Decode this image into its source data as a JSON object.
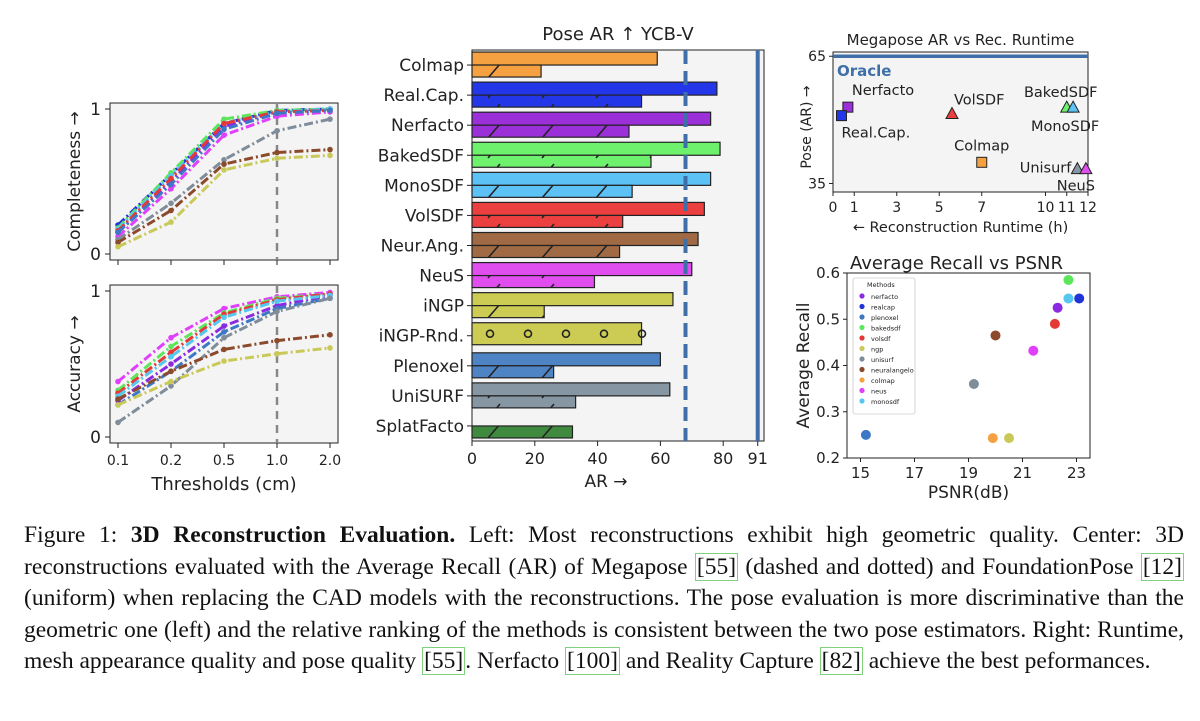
{
  "chart_data": [
    {
      "id": "completeness",
      "type": "line",
      "ylabel": "Completeness →",
      "xlabel": "",
      "xticks": [
        "0.1",
        "0.2",
        "0.5",
        "1.0",
        "2.0"
      ],
      "yticks": [
        "0",
        "1"
      ],
      "ylim": [
        0,
        1
      ],
      "vline_x": "1.0",
      "series": [
        {
          "name": "nerfacto",
          "color": "#8a2be2",
          "values": [
            0.15,
            0.5,
            0.88,
            0.98,
            1.0
          ]
        },
        {
          "name": "realcap",
          "color": "#1f35d8",
          "values": [
            0.2,
            0.55,
            0.9,
            0.99,
            1.0
          ]
        },
        {
          "name": "bakedsdf",
          "color": "#5ce65c",
          "values": [
            0.18,
            0.56,
            0.93,
            0.99,
            1.0
          ]
        },
        {
          "name": "monosdf",
          "color": "#56c8f0",
          "values": [
            0.17,
            0.54,
            0.9,
            0.98,
            1.0
          ]
        },
        {
          "name": "volsdf",
          "color": "#e53935",
          "values": [
            0.16,
            0.52,
            0.9,
            0.98,
            0.99
          ]
        },
        {
          "name": "neus",
          "color": "#e040fb",
          "values": [
            0.12,
            0.45,
            0.82,
            0.95,
            0.98
          ]
        },
        {
          "name": "plenoxel",
          "color": "#3d78c4",
          "values": [
            0.15,
            0.48,
            0.86,
            0.97,
            0.99
          ]
        },
        {
          "name": "unisurf",
          "color": "#7f8c99",
          "values": [
            0.1,
            0.35,
            0.65,
            0.85,
            0.93
          ]
        },
        {
          "name": "neuralangelo",
          "color": "#8b4a2b",
          "values": [
            0.08,
            0.3,
            0.62,
            0.7,
            0.72
          ]
        },
        {
          "name": "ngp",
          "color": "#c9c95a",
          "values": [
            0.05,
            0.22,
            0.58,
            0.66,
            0.68
          ]
        }
      ]
    },
    {
      "id": "accuracy",
      "type": "line",
      "ylabel": "Accuracy →",
      "xlabel": "Thresholds (cm)",
      "xticks": [
        "0.1",
        "0.2",
        "0.5",
        "1.0",
        "2.0"
      ],
      "yticks": [
        "0",
        "1"
      ],
      "ylim": [
        0,
        1
      ],
      "vline_x": "1.0",
      "series": [
        {
          "name": "neus",
          "color": "#e040fb",
          "values": [
            0.38,
            0.68,
            0.88,
            0.96,
            0.99
          ]
        },
        {
          "name": "bakedsdf",
          "color": "#5ce65c",
          "values": [
            0.32,
            0.62,
            0.85,
            0.95,
            0.98
          ]
        },
        {
          "name": "volsdf",
          "color": "#e53935",
          "values": [
            0.3,
            0.58,
            0.84,
            0.94,
            0.98
          ]
        },
        {
          "name": "nerfacto",
          "color": "#8a2be2",
          "values": [
            0.25,
            0.5,
            0.76,
            0.9,
            0.97
          ]
        },
        {
          "name": "monosdf",
          "color": "#56c8f0",
          "values": [
            0.28,
            0.55,
            0.82,
            0.93,
            0.97
          ]
        },
        {
          "name": "plenoxel",
          "color": "#3d78c4",
          "values": [
            0.22,
            0.45,
            0.72,
            0.88,
            0.95
          ]
        },
        {
          "name": "unisurf",
          "color": "#7f8c99",
          "values": [
            0.1,
            0.35,
            0.68,
            0.86,
            0.95
          ]
        },
        {
          "name": "neuralangelo",
          "color": "#8b4a2b",
          "values": [
            0.26,
            0.45,
            0.6,
            0.66,
            0.7
          ]
        },
        {
          "name": "ngp",
          "color": "#c9c95a",
          "values": [
            0.22,
            0.38,
            0.52,
            0.57,
            0.61
          ]
        }
      ]
    },
    {
      "id": "pose-ar",
      "type": "bar",
      "title": "Pose AR ↑ YCB-V",
      "xlabel": "AR →",
      "xlim": [
        0,
        93
      ],
      "xticks": [
        0,
        20,
        40,
        60,
        80,
        91
      ],
      "dashed_line": 68,
      "solid_line": 91,
      "categories": [
        "Colmap",
        "Real.Cap.",
        "Nerfacto",
        "BakedSDF",
        "MonoSDF",
        "VolSDF",
        "Neur.Ang.",
        "NeuS",
        "iNGP",
        "iNGP-Rnd.",
        "Plenoxel",
        "UniSURF",
        "SplatFacto"
      ],
      "colors": [
        "#f5a142",
        "#2437e8",
        "#9b30d9",
        "#6ef26e",
        "#5cc1f5",
        "#ec4040",
        "#a06a44",
        "#e04ef0",
        "#cccc55",
        "#cccc55",
        "#4f84c4",
        "#8796a3",
        "#3f8a3f"
      ],
      "series": [
        {
          "name": "FoundationPose",
          "values": [
            59,
            78,
            76,
            79,
            76,
            74,
            72,
            70,
            64,
            54,
            60,
            63,
            null
          ]
        },
        {
          "name": "Megapose",
          "values": [
            22,
            54,
            50,
            57,
            51,
            48,
            47,
            39,
            23,
            null,
            26,
            33,
            32
          ]
        }
      ],
      "dotted_category": "iNGP-Rnd."
    },
    {
      "id": "megapose-runtime",
      "type": "scatter",
      "title": "Megapose AR vs Rec. Runtime",
      "xlabel": "← Reconstruction Runtime (h)",
      "ylabel": "Pose (AR) →",
      "xticks": [
        0,
        1,
        3,
        5,
        7,
        10,
        11,
        12
      ],
      "yticks": [
        35,
        65
      ],
      "xlim": [
        0,
        12
      ],
      "ylim": [
        33,
        66
      ],
      "oracle_value": 65,
      "oracle_label": "Oracle",
      "points": [
        {
          "label": "Nerfacto",
          "x": 0.7,
          "y": 53,
          "color": "#9b30d9",
          "marker": "square"
        },
        {
          "label": "Real.Cap.",
          "x": 0.4,
          "y": 51,
          "color": "#2437e8",
          "marker": "square"
        },
        {
          "label": "VolSDF",
          "x": 5.6,
          "y": 51.5,
          "color": "#ec4040",
          "marker": "triangle"
        },
        {
          "label": "BakedSDF",
          "x": 11.0,
          "y": 53,
          "color": "#6ef26e",
          "marker": "triangle"
        },
        {
          "label": "MonoSDF",
          "x": 11.3,
          "y": 53,
          "color": "#5cc1f5",
          "marker": "triangle"
        },
        {
          "label": "Colmap",
          "x": 7.0,
          "y": 40,
          "color": "#f5a142",
          "marker": "square"
        },
        {
          "label": "Unisurf",
          "x": 11.5,
          "y": 38.5,
          "color": "#8796a3",
          "marker": "triangle"
        },
        {
          "label": "NeuS",
          "x": 11.9,
          "y": 38.5,
          "color": "#e04ef0",
          "marker": "triangle"
        }
      ]
    },
    {
      "id": "recall-psnr",
      "type": "scatter",
      "title": "Average Recall vs PSNR",
      "xlabel": "PSNR(dB)",
      "ylabel": "Average Recall",
      "xticks": [
        15,
        17,
        19,
        21,
        23
      ],
      "yticks": [
        0.2,
        0.3,
        0.4,
        0.5,
        0.6
      ],
      "xlim": [
        14.5,
        23.5
      ],
      "ylim": [
        0.2,
        0.6
      ],
      "legend_title": "Methods",
      "points": [
        {
          "label": "nerfacto",
          "x": 22.3,
          "y": 0.525,
          "color": "#8a2be2"
        },
        {
          "label": "realcap",
          "x": 23.1,
          "y": 0.545,
          "color": "#1f35d8"
        },
        {
          "label": "plenoxel",
          "x": 15.2,
          "y": 0.25,
          "color": "#3d78c4"
        },
        {
          "label": "bakedsdf",
          "x": 22.7,
          "y": 0.585,
          "color": "#5ce65c"
        },
        {
          "label": "volsdf",
          "x": 22.2,
          "y": 0.49,
          "color": "#e53935"
        },
        {
          "label": "ngp",
          "x": 20.5,
          "y": 0.243,
          "color": "#c9c95a"
        },
        {
          "label": "unisurf",
          "x": 19.2,
          "y": 0.36,
          "color": "#7f8c99"
        },
        {
          "label": "neuralangelo",
          "x": 20.0,
          "y": 0.465,
          "color": "#8b4a2b"
        },
        {
          "label": "colmap",
          "x": 19.9,
          "y": 0.243,
          "color": "#f5a142"
        },
        {
          "label": "neus",
          "x": 21.4,
          "y": 0.432,
          "color": "#e040fb"
        },
        {
          "label": "monosdf",
          "x": 22.7,
          "y": 0.545,
          "color": "#56c8f0"
        }
      ]
    }
  ],
  "caption": {
    "lead": "Figure 1: ",
    "bold": "3D Reconstruction Evaluation.",
    "p1": " Left: Most reconstructions exhibit high geometric quality. Center: 3D reconstructions evaluated with the Average Recall (AR) of Megapose ",
    "cite_megapose": "[55]",
    "p2": " (dashed and dotted) and FoundationPose ",
    "cite_foundationpose": "[12]",
    "p3": " (uniform) when replacing the CAD models with the reconstructions. The pose evaluation is more discriminative than the geometric one (left) and the relative ranking of the methods is consistent between the two pose estimators. Right: Runtime, mesh appearance quality and pose quality ",
    "cite_pose": "[55]",
    "p4": ". Nerfacto ",
    "cite_nerfacto": "[100]",
    "p5": " and Reality Capture ",
    "cite_realcap": "[82]",
    "p6": " achieve the best peformances."
  }
}
